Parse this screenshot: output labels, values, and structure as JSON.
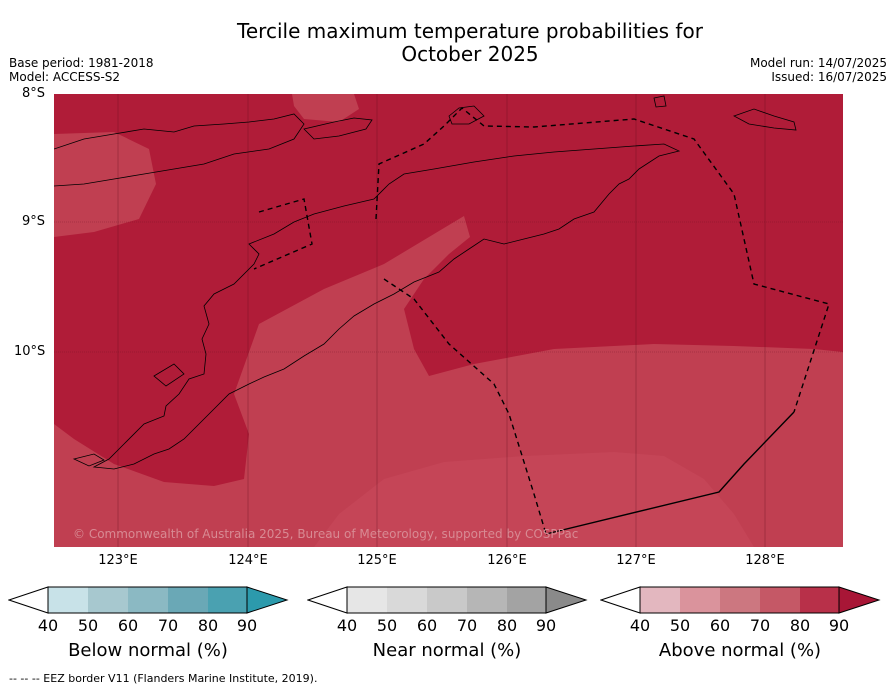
{
  "title_line1": "Tercile maximum temperature probabilities for",
  "title_line2": "October 2025",
  "base_period": "Base period: 1981-2018",
  "model": "Model: ACCESS-S2",
  "model_run": "Model run: 14/07/2025",
  "issued": "Issued: 16/07/2025",
  "lat_labels": [
    "8°S",
    "9°S",
    "10°S"
  ],
  "lon_labels": [
    "123°E",
    "124°E",
    "125°E",
    "126°E",
    "127°E",
    "128°E"
  ],
  "copyright": "© Commonwealth of Australia 2025, Bureau of Meteorology, supported by COSPPac",
  "legends": [
    {
      "label": "Below normal (%)",
      "ticks": [
        "40",
        "50",
        "60",
        "70",
        "80",
        "90"
      ],
      "colors": [
        "#ffffff",
        "#c8e2e8",
        "#a7c8cf",
        "#8bb9c3",
        "#6aa8b6",
        "#4aa1b1",
        "#2c9aac"
      ]
    },
    {
      "label": "Near normal (%)",
      "ticks": [
        "40",
        "50",
        "60",
        "70",
        "80",
        "90"
      ],
      "colors": [
        "#ffffff",
        "#e6e6e6",
        "#d9d9d9",
        "#c9c9c9",
        "#b6b6b6",
        "#a3a3a3",
        "#8a8a8a"
      ]
    },
    {
      "label": "Above normal (%)",
      "ticks": [
        "40",
        "50",
        "60",
        "70",
        "80",
        "90"
      ],
      "colors": [
        "#ffffff",
        "#e3b7bf",
        "#da939c",
        "#cc7780",
        "#c55866",
        "#b83049",
        "#a81636"
      ]
    }
  ],
  "footnote": "--  --  -- EEZ border V11 (Flanders Marine Institute, 2019).",
  "map_colors": {
    "dominant": "#b01c38",
    "secondary": "#c03f51"
  }
}
